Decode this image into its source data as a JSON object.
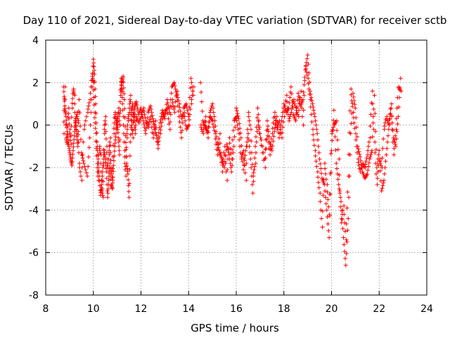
{
  "chart_data": {
    "type": "scatter",
    "title": "Day 110 of 2021, Sidereal Day-to-day VTEC variation (SDTVAR) for receiver sctb",
    "xlabel": "GPS time / hours",
    "ylabel": "SDTVAR / TECUs",
    "xlim": [
      8,
      24
    ],
    "ylim": [
      -8,
      4
    ],
    "xticks": [
      "8",
      "10",
      "12",
      "14",
      "16",
      "18",
      "20",
      "22",
      "24"
    ],
    "yticks": [
      "-8",
      "-6",
      "-4",
      "-2",
      "0",
      "2",
      "4"
    ],
    "grid": true,
    "marker": "+",
    "color": "#ff0000",
    "series": [
      {
        "name": "SDTVAR",
        "x": [
          8.75,
          8.8,
          8.85,
          8.9,
          8.95,
          9.0,
          9.05,
          9.1,
          9.15,
          9.2,
          9.25,
          9.3,
          9.35,
          9.4,
          9.5,
          9.6,
          9.75,
          9.85,
          9.95,
          10.0,
          10.05,
          10.1,
          10.15,
          10.2,
          10.25,
          10.3,
          10.35,
          10.4,
          10.45,
          10.5,
          10.55,
          10.6,
          10.65,
          10.7,
          10.75,
          10.8,
          10.85,
          10.9,
          10.95,
          11.0,
          11.05,
          11.1,
          11.15,
          11.2,
          11.25,
          11.3,
          11.35,
          11.4,
          11.45,
          11.5,
          11.55,
          11.6,
          11.65,
          11.7,
          11.75,
          11.8,
          11.9,
          12.0,
          12.1,
          12.2,
          12.3,
          12.4,
          12.5,
          12.6,
          12.7,
          12.8,
          12.9,
          13.0,
          13.1,
          13.2,
          13.3,
          13.4,
          13.5,
          13.6,
          13.7,
          13.8,
          13.9,
          14.0,
          14.1,
          14.2,
          14.5,
          14.6,
          14.7,
          14.8,
          14.9,
          15.0,
          15.1,
          15.2,
          15.3,
          15.4,
          15.5,
          15.6,
          15.7,
          15.8,
          15.9,
          16.0,
          16.1,
          16.2,
          16.3,
          16.4,
          16.5,
          16.6,
          16.7,
          16.8,
          16.9,
          17.0,
          17.2,
          17.3,
          17.4,
          17.5,
          17.6,
          17.7,
          17.8,
          17.9,
          18.0,
          18.1,
          18.2,
          18.3,
          18.4,
          18.5,
          18.6,
          18.7,
          18.8,
          18.9,
          19.0,
          19.1,
          19.2,
          19.3,
          19.4,
          19.5,
          19.6,
          19.7,
          19.8,
          19.9,
          20.0,
          20.1,
          20.2,
          20.3,
          20.4,
          20.5,
          20.6,
          20.7,
          20.8,
          20.9,
          21.0,
          21.1,
          21.2,
          21.3,
          21.4,
          21.5,
          21.6,
          21.7,
          21.8,
          21.9,
          22.0,
          22.1,
          22.2,
          22.3,
          22.4,
          22.5,
          22.6,
          22.7,
          22.8,
          22.9
        ],
        "y": [
          1.8,
          0.9,
          0.4,
          -0.3,
          -0.8,
          -1.2,
          -1.6,
          -1.9,
          -1.2,
          -0.5,
          0.3,
          -0.4,
          -1.0,
          1.2,
          -1.3,
          -1.8,
          -2.4,
          -0.6,
          1.8,
          3.1,
          2.4,
          1.0,
          -0.8,
          -1.6,
          -2.4,
          -3.3,
          -2.8,
          -2.0,
          -1.2,
          -1.6,
          -2.2,
          -3.4,
          -2.6,
          -1.8,
          -2.8,
          -3.0,
          -1.9,
          -1.0,
          -0.4,
          0.4,
          -0.6,
          -1.4,
          1.4,
          2.0,
          2.3,
          1.2,
          -0.5,
          -1.8,
          -2.3,
          -3.4,
          -0.8,
          0.6,
          1.0,
          0.2,
          0.9,
          1.1,
          0.5,
          0.8,
          0.2,
          -0.4,
          0.6,
          0.9,
          0.3,
          -0.2,
          -0.8,
          0.1,
          0.7,
          0.3,
          1.2,
          0.6,
          1.8,
          2.0,
          1.4,
          0.4,
          -0.6,
          0.8,
          1.0,
          0.4,
          2.2,
          1.4,
          2.0,
          0.2,
          -0.1,
          -0.3,
          0.6,
          1.0,
          0.2,
          -0.8,
          -1.3,
          -1.6,
          -2.0,
          -0.9,
          -1.4,
          -2.2,
          -1.0,
          0.8,
          0.3,
          -0.6,
          -2.1,
          -1.2,
          -0.4,
          -1.6,
          -3.2,
          -1.0,
          0.8,
          -0.4,
          -1.6,
          0.2,
          -0.8,
          -1.2,
          -0.3,
          0.4,
          -0.6,
          0.2,
          1.0,
          0.6,
          0.8,
          1.8,
          0.5,
          0.2,
          1.5,
          0.9,
          1.2,
          2.6,
          3.3,
          1.6,
          1.0,
          0.4,
          -0.4,
          -1.6,
          -2.5,
          -2.8,
          -4.0,
          -5.3,
          -1.2,
          0.7,
          -1.8,
          -2.8,
          -3.6,
          -5.3,
          -6.6,
          -4.4,
          -0.4,
          1.5,
          0.8,
          -1.0,
          -1.5,
          -2.2,
          -2.5,
          -2.3,
          -1.6,
          -1.2,
          1.4,
          -2.0,
          -1.2,
          -3.1,
          -2.6,
          -1.4,
          -0.2,
          0.8,
          -0.6,
          -1.0,
          0.4,
          2.2
        ],
        "y2": [
          -0.4,
          1.8,
          -0.6,
          -0.9,
          0.8,
          -0.2,
          -0.9,
          0.8,
          1.7,
          1.4,
          -0.2,
          0.6,
          0.2,
          -1.8,
          -2.6,
          -0.2,
          0.6,
          1.2,
          2.4,
          2.0,
          0.6,
          -0.4,
          -1.8,
          -2.6,
          -1.0,
          -1.4,
          -3.0,
          -3.4,
          -0.4,
          0.4,
          -1.0,
          -2.2,
          -1.4,
          -0.6,
          -2.0,
          -2.6,
          -0.4,
          0.6,
          0.2,
          -0.2,
          0.8,
          0.0,
          2.2,
          1.6,
          0.4,
          -1.2,
          -2.4,
          -0.6,
          0.2,
          0.6,
          1.4,
          0.2,
          -0.6,
          0.8,
          -0.4,
          0.4,
          0.1,
          0.4,
          0.8,
          0.2,
          -0.1,
          0.4,
          -0.6,
          0.2,
          -1.1,
          -0.4,
          0.3,
          0.6,
          0.8,
          -0.2,
          1.2,
          0.6,
          1.6,
          1.0,
          0.3,
          0.6,
          -0.2,
          0.0,
          1.0,
          1.8,
          0.0,
          -0.4,
          0.4,
          -0.6,
          0.4,
          0.2,
          -0.4,
          -1.4,
          -0.4,
          -2.2,
          -1.0,
          -2.6,
          -0.6,
          -1.6,
          0.2,
          0.4,
          -0.4,
          -1.6,
          -1.2,
          -2.6,
          0.6,
          -0.2,
          -2.4,
          -1.8,
          0.2,
          -0.6,
          -2.0,
          -0.2,
          -1.4,
          -0.4,
          0.6,
          -0.2,
          0.2,
          -0.6,
          0.4,
          1.4,
          0.2,
          0.6,
          1.2,
          0.8,
          0.4,
          1.6,
          0.0,
          2.8,
          2.2,
          1.2,
          -0.2,
          -1.2,
          -2.2,
          -3.2,
          -4.8,
          -1.8,
          -2.8,
          -4.2,
          -0.4,
          0.0,
          0.2,
          -1.6,
          -4.6,
          -3.8,
          -5.4,
          -2.4,
          1.7,
          0.6,
          -0.4,
          -1.6,
          -2.2,
          -1.8,
          -2.0,
          -1.4,
          -0.6,
          1.6,
          -0.8,
          -2.8,
          -1.6,
          -2.0,
          -0.2,
          0.4,
          0.0,
          1.0,
          -1.4,
          -0.2,
          1.8,
          1.6
        ]
      }
    ]
  }
}
